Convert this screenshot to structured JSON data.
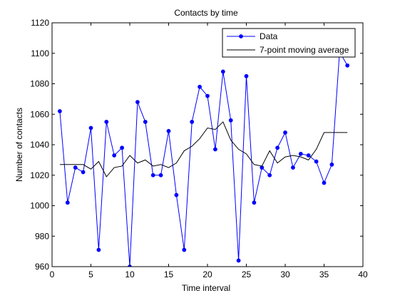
{
  "chart_data": {
    "type": "line",
    "title": "Contacts by time",
    "xlabel": "Time interval",
    "ylabel": "Number of contacts",
    "xlim": [
      0,
      40
    ],
    "ylim": [
      960,
      1120
    ],
    "xticks": [
      0,
      5,
      10,
      15,
      20,
      25,
      30,
      35,
      40
    ],
    "yticks": [
      960,
      980,
      1000,
      1020,
      1040,
      1060,
      1080,
      1100,
      1120
    ],
    "grid": false,
    "legend_position": "top-right",
    "series": [
      {
        "name": "Data",
        "color": "#0000ff",
        "marker": "circle",
        "x": [
          1,
          2,
          3,
          4,
          5,
          6,
          7,
          8,
          9,
          10,
          11,
          12,
          13,
          14,
          15,
          16,
          17,
          18,
          19,
          20,
          21,
          22,
          23,
          24,
          25,
          26,
          27,
          28,
          29,
          30,
          31,
          32,
          33,
          34,
          35,
          36,
          37,
          38
        ],
        "y": [
          1062,
          1002,
          1025,
          1022,
          1051,
          971,
          1055,
          1033,
          1038,
          960,
          1068,
          1055,
          1020,
          1020,
          1049,
          1007,
          971,
          1055,
          1078,
          1072,
          1037,
          1088,
          1056,
          964,
          1085,
          1002,
          1025,
          1020,
          1038,
          1048,
          1025,
          1034,
          1033,
          1029,
          1015,
          1027,
          1101,
          1092
        ]
      },
      {
        "name": "7-point moving average",
        "color": "#000000",
        "marker": "none",
        "x": [
          1,
          2,
          3,
          4,
          5,
          6,
          7,
          8,
          9,
          10,
          11,
          12,
          13,
          14,
          15,
          16,
          17,
          18,
          19,
          20,
          21,
          22,
          23,
          24,
          25,
          26,
          27,
          28,
          29,
          30,
          31,
          32,
          33,
          34,
          35,
          36,
          37,
          38
        ],
        "y": [
          1027,
          1027,
          1027,
          1027,
          1024,
          1029,
          1019,
          1025,
          1026,
          1033,
          1028,
          1030,
          1026,
          1027,
          1025,
          1028,
          1036,
          1039,
          1044,
          1051,
          1050,
          1055,
          1043,
          1037,
          1034,
          1027,
          1026,
          1036,
          1028,
          1032,
          1033,
          1032,
          1030,
          1037,
          1048,
          1048,
          1048,
          1048
        ]
      }
    ]
  }
}
